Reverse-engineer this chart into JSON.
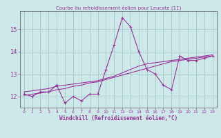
{
  "title": "Courbe du refroidissement éolien pour Leucate (11)",
  "xlabel": "Windchill (Refroidissement éolien,°C)",
  "background_color": "#cce8e8",
  "grid_color": "#aacccc",
  "line_color": "#993399",
  "hours": [
    0,
    1,
    2,
    3,
    4,
    5,
    6,
    7,
    8,
    9,
    10,
    11,
    12,
    13,
    14,
    15,
    16,
    17,
    18,
    19,
    20,
    21,
    22,
    23
  ],
  "main_values": [
    12.1,
    12.0,
    12.2,
    12.2,
    12.5,
    11.7,
    12.0,
    11.8,
    12.1,
    12.1,
    13.2,
    14.3,
    15.5,
    15.1,
    14.0,
    13.2,
    13.0,
    12.5,
    12.3,
    13.8,
    13.6,
    13.6,
    13.7,
    13.8
  ],
  "trend1_values": [
    12.05,
    12.1,
    12.15,
    12.2,
    12.3,
    12.35,
    12.45,
    12.5,
    12.6,
    12.65,
    12.75,
    12.85,
    12.95,
    13.05,
    13.15,
    13.25,
    13.35,
    13.45,
    13.55,
    13.6,
    13.65,
    13.7,
    13.75,
    13.8
  ],
  "trend2_values": [
    12.2,
    12.25,
    12.3,
    12.35,
    12.45,
    12.5,
    12.55,
    12.6,
    12.65,
    12.7,
    12.8,
    12.9,
    13.05,
    13.2,
    13.35,
    13.45,
    13.5,
    13.55,
    13.6,
    13.65,
    13.7,
    13.75,
    13.8,
    13.85
  ],
  "ylim": [
    11.5,
    15.8
  ],
  "yticks": [
    12,
    13,
    14,
    15
  ],
  "xticks": [
    0,
    1,
    2,
    3,
    4,
    5,
    6,
    7,
    8,
    9,
    10,
    11,
    12,
    13,
    14,
    15,
    16,
    17,
    18,
    19,
    20,
    21,
    22,
    23
  ]
}
